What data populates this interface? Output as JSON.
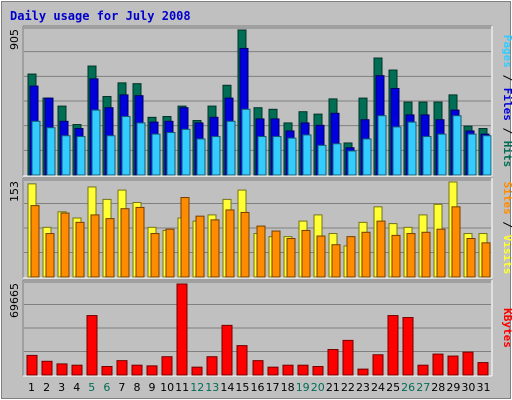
{
  "colors": {
    "background": "#c0c0c0",
    "panel": "#c0c0c0",
    "grid": "#808080",
    "title": "#0000cc",
    "hits": "#006e55",
    "files": "#0000dd",
    "pages": "#33ccff",
    "visits": "#ffff33",
    "sites": "#ff8c00",
    "kbytes": "#ff0000",
    "weekend_label": "#006e55",
    "weekday_label": "#000000"
  },
  "chart_data": [
    {
      "type": "bar",
      "title": "Daily usage for July 2008",
      "ymax_label": "905",
      "ylim": [
        0,
        905
      ],
      "grid": true,
      "categories": [
        "1",
        "2",
        "3",
        "4",
        "5",
        "6",
        "7",
        "8",
        "9",
        "10",
        "11",
        "12",
        "13",
        "14",
        "15",
        "16",
        "17",
        "18",
        "19",
        "20",
        "21",
        "22",
        "23",
        "24",
        "25",
        "26",
        "27",
        "28",
        "29",
        "30",
        "31"
      ],
      "weekend_days": [
        "5",
        "6",
        "12",
        "13",
        "19",
        "20",
        "26",
        "27"
      ],
      "series": [
        {
          "name": "Hits",
          "color": "#006e55",
          "values": [
            630,
            480,
            430,
            315,
            680,
            490,
            575,
            570,
            360,
            365,
            430,
            340,
            430,
            560,
            905,
            420,
            410,
            325,
            395,
            380,
            475,
            200,
            480,
            730,
            655,
            455,
            455,
            455,
            500,
            305,
            290
          ]
        },
        {
          "name": "Files",
          "color": "#0000dd",
          "values": [
            555,
            480,
            335,
            290,
            600,
            420,
            500,
            495,
            330,
            335,
            420,
            325,
            360,
            480,
            790,
            350,
            350,
            275,
            325,
            310,
            385,
            170,
            345,
            620,
            540,
            375,
            375,
            345,
            405,
            275,
            255
          ]
        },
        {
          "name": "Pages",
          "color": "#33ccff",
          "values": [
            335,
            295,
            245,
            240,
            405,
            245,
            365,
            325,
            255,
            265,
            285,
            225,
            240,
            335,
            410,
            240,
            240,
            230,
            250,
            185,
            195,
            150,
            225,
            370,
            300,
            330,
            240,
            255,
            370,
            255,
            245
          ]
        }
      ],
      "side_label": {
        "pages": "Pages",
        "files": "Files",
        "hits": "Hits",
        "sep": " / "
      }
    },
    {
      "type": "bar",
      "ymax_label": "153",
      "ylim": [
        0,
        153
      ],
      "grid": true,
      "series": [
        {
          "name": "Visits",
          "color": "#ffff33",
          "values": [
            150,
            80,
            105,
            95,
            145,
            125,
            140,
            120,
            80,
            75,
            95,
            90,
            100,
            125,
            140,
            70,
            65,
            65,
            90,
            100,
            70,
            50,
            88,
            113,
            86,
            80,
            100,
            117,
            153,
            70,
            70
          ]
        },
        {
          "name": "Sites",
          "color": "#ff8c00",
          "values": [
            115,
            70,
            103,
            88,
            100,
            94,
            110,
            112,
            70,
            77,
            128,
            98,
            92,
            108,
            104,
            82,
            74,
            62,
            75,
            66,
            52,
            65,
            72,
            90,
            67,
            70,
            72,
            77,
            113,
            62,
            55
          ]
        }
      ],
      "side_label": {
        "sites": "Sites",
        "visits": "Visits",
        "sep": " / "
      }
    },
    {
      "type": "bar",
      "ymax_label": "69665",
      "ylim": [
        0,
        69665
      ],
      "grid": true,
      "series": [
        {
          "name": "KBytes",
          "color": "#ff0000",
          "values": [
            15000,
            10500,
            8500,
            7500,
            45500,
            6500,
            11000,
            7500,
            7000,
            14000,
            69665,
            6000,
            14000,
            38000,
            22500,
            11000,
            6000,
            7500,
            7500,
            6500,
            19500,
            26500,
            4500,
            15500,
            45500,
            44000,
            7500,
            16000,
            14500,
            17500,
            9500
          ]
        }
      ],
      "side_label": {
        "kbytes": "KBytes"
      }
    }
  ]
}
